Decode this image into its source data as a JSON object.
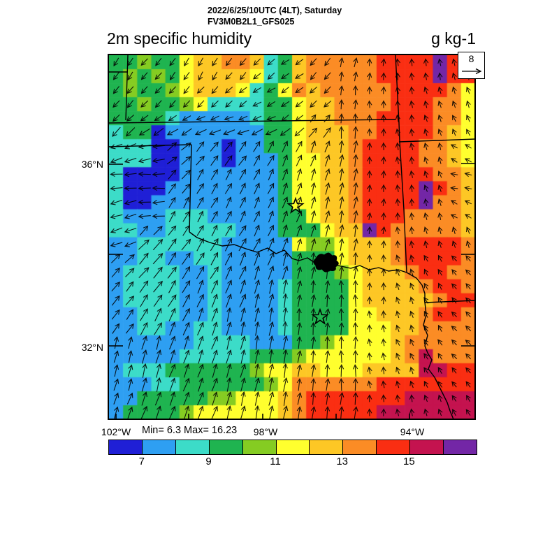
{
  "header": {
    "line1": "2022/6/25/10UTC (4LT), Saturday",
    "line2": "FV3M0B2L1_GFS025"
  },
  "title": {
    "left": "2m specific humidity",
    "units": "g kg-1"
  },
  "stats": {
    "min_max": "Min= 6.3 Max= 16.23"
  },
  "axes": {
    "lat": [
      "36°N",
      "32°N"
    ],
    "lon": [
      "102°W",
      "98°W",
      "94°W"
    ]
  },
  "wind_ref": {
    "value": "8"
  },
  "colorbar": {
    "tick_labels": [
      "7",
      "9",
      "11",
      "13",
      "15"
    ],
    "colors": [
      "#1F1FD6",
      "#2E9FF2",
      "#3CDCC8",
      "#1FB450",
      "#85CC22",
      "#FFFF2E",
      "#FDC725",
      "#FB8C25",
      "#FA2E12",
      "#C4134F",
      "#7326A6"
    ]
  },
  "chart_data": {
    "type": "heatmap",
    "field": "2m specific humidity",
    "units": "g kg-1",
    "min": 6.3,
    "max": 16.23,
    "levels": [
      6,
      7,
      8,
      9,
      10,
      11,
      12,
      13,
      14,
      15,
      16,
      17
    ],
    "palette": {
      "a": "#1F1FD6",
      "b": "#2E9FF2",
      "c": "#3CDCC8",
      "d": "#1FB450",
      "e": "#85CC22",
      "f": "#FFFF2E",
      "g": "#FDC725",
      "h": "#FB8C25",
      "i": "#FA2E12",
      "j": "#C4134F",
      "k": "#7326A6"
    },
    "grid_rows": [
      "ddeddfgghhgcdghhhhhiiiikii",
      "dededfggggfcdghhhhhiiiikii",
      "deddefgggfcdfhghhhhhiiiihf",
      "ddeddefccccddfgghhhhiiihhf",
      "ddddcbbbbbcddfgghhhiiiihhf",
      "cddabbbbbbbddfggghhiiiihgf",
      "cccaabbbabbddfggghiiiihhgf",
      "cccaabbbabbbdffgghiiiihhgf",
      "caaaabbbbbbbdffgghiiiiihhg",
      "caaabbbbbbbbdffgghiiiikihg",
      "caabbbbbbbbbdffgghiiiikhhg",
      "cbbbcccbbbbbddfgghiiihhhhg",
      "ccbbcccccbbbdddfggkihhhhhg",
      "bbccccccbbbbbfeefggghiiiih",
      "bbccbbccbbbbbdddfggghiiiih",
      "bccccbbcbbbbbdddefggghiihh",
      "bccccbbcbbbbcddddfgggghiih",
      "bccccbbcbbbbcddddfggggghii",
      "bbcccbbcbbbbcddddffggghiih",
      "bbccbbccbbbbcddddfffgghhhh",
      "bbbbbbccccbbbddeffffghhhhh",
      "bbbbbcccccdddeffffffghjhhh",
      "bcccddddddeffggfffggggjjii",
      "bbbccddddddefhhhhhhiiiiiii",
      "bbdddddeefffghiiiiiiijjjjj",
      "bddddeffffffghiiiiijjjjjjj"
    ],
    "wind_deg": [
      [
        215,
        220,
        215,
        210,
        220,
        230,
        235,
        220,
        10,
        5,
        355,
        350,
        345
      ],
      [
        220,
        225,
        220,
        225,
        230,
        240,
        235,
        225,
        5,
        0,
        350,
        345,
        340
      ],
      [
        225,
        235,
        240,
        245,
        250,
        245,
        230,
        40,
        0,
        0,
        350,
        340,
        335
      ],
      [
        250,
        260,
        50,
        40,
        35,
        30,
        25,
        20,
        10,
        0,
        350,
        345,
        300
      ],
      [
        265,
        270,
        40,
        30,
        30,
        25,
        20,
        15,
        10,
        5,
        350,
        340,
        280
      ],
      [
        255,
        265,
        30,
        30,
        25,
        25,
        20,
        15,
        10,
        5,
        355,
        345,
        300
      ],
      [
        250,
        45,
        35,
        30,
        30,
        25,
        20,
        15,
        10,
        5,
        350,
        345,
        340
      ],
      [
        45,
        40,
        35,
        30,
        25,
        20,
        15,
        10,
        5,
        0,
        340,
        330,
        320
      ],
      [
        40,
        35,
        30,
        25,
        20,
        15,
        10,
        5,
        0,
        0,
        340,
        330,
        320
      ],
      [
        35,
        30,
        25,
        20,
        15,
        10,
        5,
        5,
        0,
        355,
        340,
        330,
        315
      ],
      [
        15,
        15,
        20,
        20,
        15,
        10,
        8,
        5,
        0,
        350,
        335,
        325,
        315
      ],
      [
        15,
        15,
        20,
        20,
        15,
        12,
        10,
        5,
        0,
        350,
        340,
        330,
        320
      ],
      [
        20,
        20,
        22,
        20,
        15,
        12,
        10,
        8,
        5,
        0,
        350,
        340,
        330
      ]
    ],
    "stars_map_xy": [
      [
        267,
        216
      ],
      [
        302,
        375
      ]
    ]
  }
}
